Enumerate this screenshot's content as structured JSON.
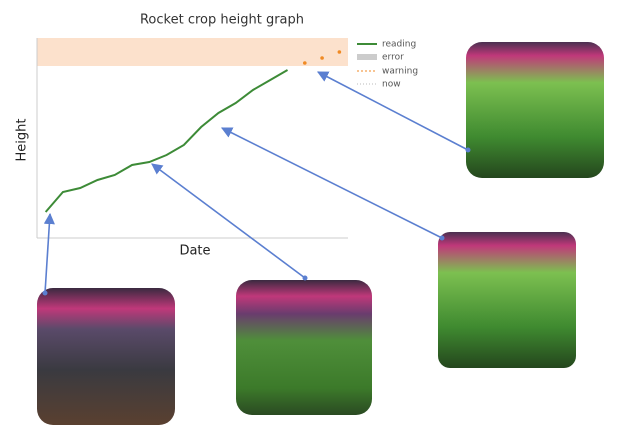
{
  "chart_data": {
    "type": "line",
    "title": "Rocket crop height graph",
    "x_label": "Date",
    "y_label": "Height",
    "categories": [
      null,
      null,
      null,
      null,
      null,
      null,
      null,
      null,
      null,
      null,
      null,
      null,
      null,
      null,
      null,
      null,
      null,
      null
    ],
    "series": [
      {
        "name": "reading",
        "color": "#3d8b37",
        "style": "solid",
        "values": [
          13,
          23,
          25,
          29,
          31.5,
          36.5,
          38,
          41.5,
          46.5,
          55.5,
          62.5,
          67.5,
          74,
          79,
          84,
          null,
          null,
          null
        ]
      },
      {
        "name": "warning",
        "color": "#f08a24",
        "style": "dotted",
        "values": [
          null,
          null,
          null,
          null,
          null,
          null,
          null,
          null,
          null,
          null,
          null,
          null,
          null,
          null,
          null,
          87.5,
          90,
          93
        ]
      }
    ],
    "legend_extra": [
      {
        "name": "error",
        "color": "#cccccc"
      },
      {
        "name": "now",
        "color": "#bbbbbb"
      }
    ],
    "warning_band": [
      86,
      100
    ],
    "ylim": [
      0,
      100
    ]
  }
}
